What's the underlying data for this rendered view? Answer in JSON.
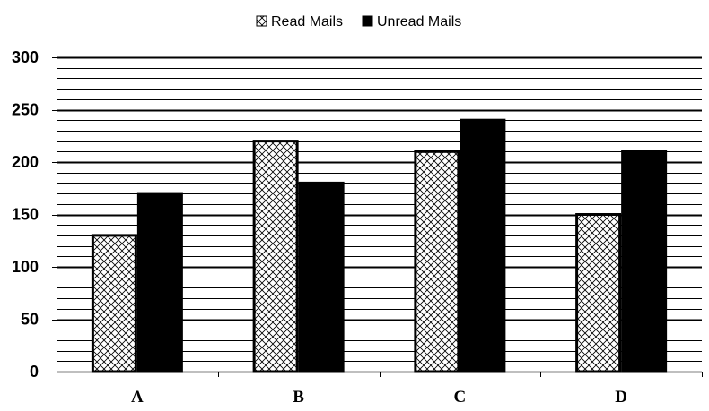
{
  "chart_data": {
    "type": "bar",
    "categories": [
      "A",
      "B",
      "C",
      "D"
    ],
    "series": [
      {
        "name": "Read Mails",
        "values": [
          130,
          220,
          210,
          150
        ],
        "fill": "hatch"
      },
      {
        "name": "Unread Mails",
        "values": [
          170,
          180,
          240,
          210
        ],
        "fill": "#000000"
      }
    ],
    "ylim": [
      0,
      300
    ],
    "yticks": [
      0,
      50,
      100,
      150,
      200,
      250,
      300
    ],
    "yticklabels": [
      "0",
      "50",
      "100",
      "150",
      "200",
      "250",
      "300"
    ],
    "minor_grid_step": 10,
    "major_grid_step": 50,
    "grid": true,
    "legend_position": "top-center",
    "title": "",
    "xlabel": "",
    "ylabel": ""
  }
}
